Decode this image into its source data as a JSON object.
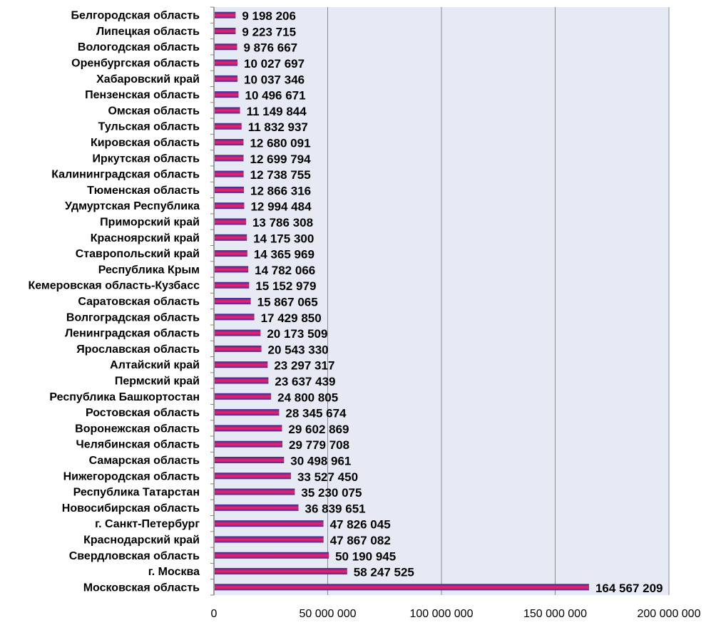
{
  "chart_data": {
    "type": "bar",
    "orientation": "horizontal",
    "categories": [
      "Белгородская область",
      "Липецкая область",
      "Вологодская область",
      "Оренбургская область",
      "Хабаровский край",
      "Пензенская область",
      "Омская область",
      "Тульская область",
      "Кировская область",
      "Иркутская область",
      "Калининградская область",
      "Тюменская область",
      "Удмуртская Республика",
      "Приморский край",
      "Красноярский край",
      "Ставропольский край",
      "Республика Крым",
      "Кемеровская область-Кузбасс",
      "Саратовская область",
      "Волгоградская область",
      "Ленинградская область",
      "Ярославская область",
      "Алтайский край",
      "Пермский край",
      "Республика Башкортостан",
      "Ростовская область",
      "Воронежская область",
      "Челябинская область",
      "Самарская область",
      "Нижегородская область",
      "Республика Татарстан",
      "Новосибирская область",
      "г. Санкт-Петербург",
      "Краснодарский край",
      "Свердловская область",
      "г. Москва",
      "Московская область"
    ],
    "values": [
      9198206,
      9223715,
      9876667,
      10027697,
      10037346,
      10496671,
      11149844,
      11832937,
      12680091,
      12699794,
      12738755,
      12866316,
      12994484,
      13786308,
      14175300,
      14365969,
      14782066,
      15152979,
      15867065,
      17429850,
      20173509,
      20543330,
      23297317,
      23637439,
      24800805,
      28345674,
      29602869,
      29779708,
      30498961,
      33527450,
      35230075,
      36839651,
      47826045,
      47867082,
      50190945,
      58247525,
      164567209
    ],
    "value_labels": [
      "9 198 206",
      "9 223 715",
      "9 876 667",
      "10 027 697",
      "10 037 346",
      "10 496 671",
      "11 149 844",
      "11 832 937",
      "12 680 091",
      "12 699 794",
      "12 738 755",
      "12 866 316",
      "12 994 484",
      "13 786 308",
      "14 175 300",
      "14 365 969",
      "14 782 066",
      "15 152 979",
      "15 867 065",
      "17 429 850",
      "20 173 509",
      "20 543 330",
      "23 297 317",
      "23 637 439",
      "24 800 805",
      "28 345 674",
      "29 602 869",
      "29 779 708",
      "30 498 961",
      "33 527 450",
      "35 230 075",
      "36 839 651",
      "47 826 045",
      "47 867 082",
      "50 190 945",
      "58 247 525",
      "164 567 209"
    ],
    "xlim": [
      0,
      200000000
    ],
    "x_ticks": [
      0,
      50000000,
      100000000,
      150000000,
      200000000
    ],
    "x_tick_labels": [
      "0",
      "50 000 000",
      "100 000 000",
      "150 000 000",
      "200 000 000"
    ],
    "title": "",
    "xlabel": "",
    "ylabel": "",
    "grid": "vertical",
    "legend": "none",
    "colors": {
      "bar_top": "#2b2fa0",
      "bar_mid": "#e8206a",
      "bar_bottom": "#3a2ea8",
      "plot_background": "#e6eaf5",
      "grid": "#8c8c8c",
      "axis": "#808080"
    }
  }
}
